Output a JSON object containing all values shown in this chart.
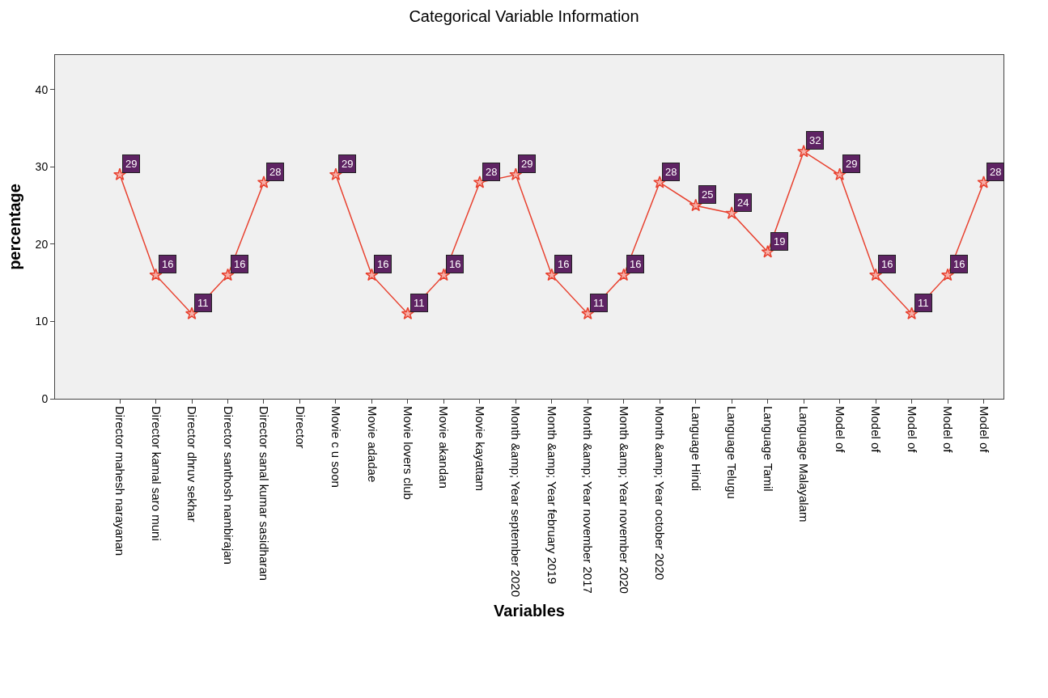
{
  "chart_data": {
    "type": "line",
    "title": "Categorical Variable Information",
    "xlabel": "Variables",
    "ylabel": "percentage",
    "categories": [
      "Director mahesh narayanan",
      "Director kamal saro muni",
      "Director dhruv sekhar",
      "Director santhosh nambirajan",
      "Director sanal kumar sasidharan",
      "Director",
      "Movie c u soon",
      "Movie adadae",
      "Movie lovers club",
      "Movie akandan",
      "Movie kayattam",
      "Month &amp; Year september 2020",
      "Month &amp; Year february 2019",
      "Month &amp; Year november 2017",
      "Month &amp; Year november 2020",
      "Month &amp; Year october 2020",
      "Language Hindi",
      "Language Telugu",
      "Language Tamil",
      "Language Malayalam",
      "Model of",
      "Model of",
      "Model of",
      "Model of",
      "Model of"
    ],
    "series": [
      {
        "color": "#e8412f",
        "values": [
          29,
          16,
          11,
          16,
          28,
          null,
          29,
          16,
          11,
          16,
          28,
          29,
          16,
          11,
          16,
          28,
          25,
          24,
          19,
          32,
          29,
          16,
          11,
          16,
          28
        ]
      }
    ],
    "ylim": [
      0,
      44.5
    ],
    "yticks": [
      0,
      10,
      20,
      30,
      40
    ],
    "grid": false,
    "marker": "star",
    "line_style": "solid",
    "data_labels": true
  }
}
